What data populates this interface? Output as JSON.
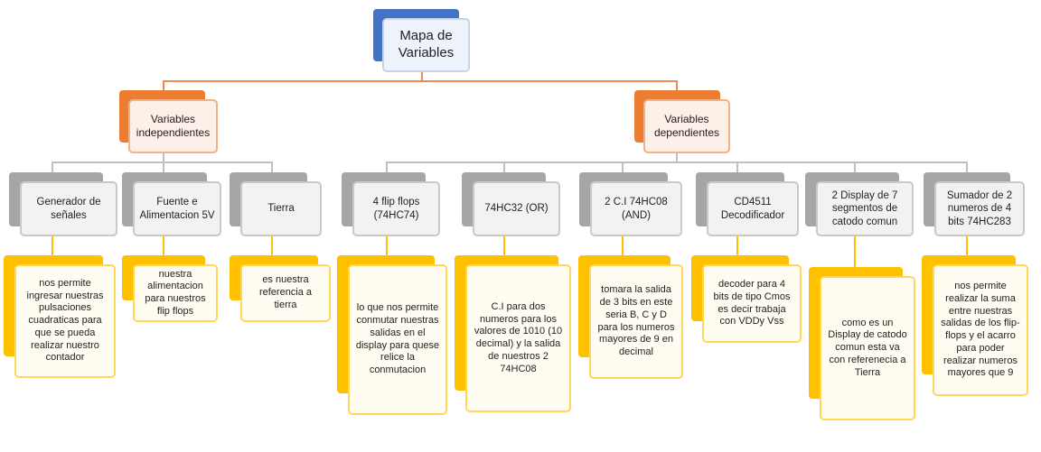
{
  "root": {
    "label": "Mapa de Variables"
  },
  "categories": [
    {
      "label": "Variables independientes"
    },
    {
      "label": "Variables dependientes"
    }
  ],
  "nodes": [
    {
      "title": "Generador de señales",
      "description": "nos permite ingresar nuestras pulsaciones cuadraticas para que se pueda realizar nuestro contador"
    },
    {
      "title": "Fuente e Alimentacion 5V",
      "description": "nuestra alimentacion para nuestros flip flops"
    },
    {
      "title": "Tierra",
      "description": "es nuestra referencia a tierra"
    },
    {
      "title": "4 flip flops (74HC74)",
      "description": "lo que nos permite conmutar nuestras salidas en el display para quese relice la conmutacion"
    },
    {
      "title": "74HC32 (OR)",
      "description": "C.I para dos numeros para los valores de 1010 (10 decimal) y la salida de nuestros 2 74HC08"
    },
    {
      "title": "2   C.I 74HC08 (AND)",
      "description": "tomara la salida de 3 bits en este seria B, C y D para los numeros mayores de 9 en decimal"
    },
    {
      "title": "CD4511 Decodificador",
      "description": "decoder para 4 bits de tipo Cmos es decir trabaja con VDDy Vss"
    },
    {
      "title": "2 Display de 7 segmentos de catodo comun",
      "description": "como es un Display de catodo comun esta va con referenecia a Tierra"
    },
    {
      "title": "Sumador de 2 numeros de 4 bits 74HC283",
      "description": "nos permite realizar la suma entre nuestras salidas de los flip-flops y el acarro para poder realizar numeros mayores que 9"
    }
  ],
  "colors": {
    "root_accent": "#4472c4",
    "category_accent": "#ed7d31",
    "node_accent": "#a6a6a6",
    "desc_accent": "#ffc000"
  }
}
